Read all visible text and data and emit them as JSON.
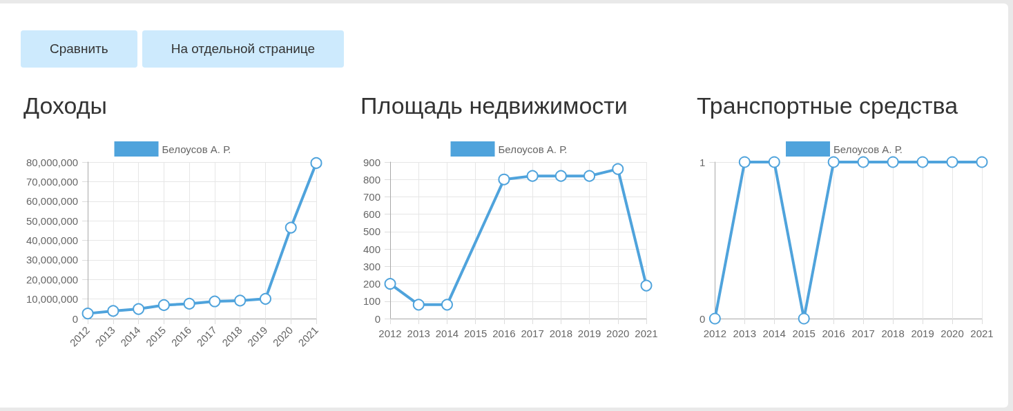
{
  "chart_data": [
    {
      "type": "other",
      "annotations": [
        "Сравнить",
        "На отдельной странице"
      ]
    },
    {
      "type": "line",
      "title": "Доходы",
      "categories": [
        "2012",
        "2013",
        "2014",
        "2015",
        "2016",
        "2017",
        "2018",
        "2019",
        "2020",
        "2021"
      ],
      "series": [
        {
          "name": "Белоусов А. Р.",
          "color": "#4fa3dc",
          "values": [
            2600000,
            3900000,
            4900000,
            6900000,
            7600000,
            8800000,
            9200000,
            10100000,
            46500000,
            79500000
          ]
        }
      ],
      "ylim": [
        0,
        80000000
      ],
      "yticks": [
        0,
        {
          "value": 10000000,
          "label": "10,000,000"
        },
        {
          "value": 20000000,
          "label": "20,000,000"
        },
        {
          "value": 30000000,
          "label": "30,000,000"
        },
        {
          "value": 40000000,
          "label": "40,000,000"
        },
        {
          "value": 50000000,
          "label": "50,000,000"
        },
        {
          "value": 60000000,
          "label": "60,000,000"
        },
        {
          "value": 70000000,
          "label": "70,000,000"
        },
        {
          "value": 80000000,
          "label": "80,000,000"
        }
      ],
      "grid": true,
      "legend": "top",
      "marker": "circle",
      "line_style": "solid"
    },
    {
      "type": "line",
      "title": "Площадь недвижимости",
      "categories": [
        "2012",
        "2013",
        "2014",
        "2015",
        "2016",
        "2017",
        "2018",
        "2019",
        "2020",
        "2021"
      ],
      "series": [
        {
          "name": "Белоусов А. Р.",
          "color": "#4fa3dc",
          "values": [
            200,
            80,
            80,
            null,
            800,
            820,
            820,
            820,
            860,
            190
          ]
        }
      ],
      "ylim": [
        0,
        900
      ],
      "yticks": [
        0,
        100,
        200,
        300,
        400,
        500,
        600,
        700,
        800,
        900
      ],
      "grid": true,
      "legend": "top",
      "marker": "circle",
      "line_style": "solid"
    },
    {
      "type": "line",
      "title": "Транспортные средства",
      "categories": [
        "2012",
        "2013",
        "2014",
        "2015",
        "2016",
        "2017",
        "2018",
        "2019",
        "2020",
        "2021"
      ],
      "series": [
        {
          "name": "Белоусов А. Р.",
          "color": "#4fa3dc",
          "values": [
            0,
            1,
            1,
            0,
            1,
            1,
            1,
            1,
            1,
            1
          ]
        }
      ],
      "ylim": [
        0,
        1
      ],
      "yticks": [
        0,
        1
      ],
      "grid": true,
      "legend": "top",
      "marker": "circle",
      "line_style": "solid"
    }
  ]
}
